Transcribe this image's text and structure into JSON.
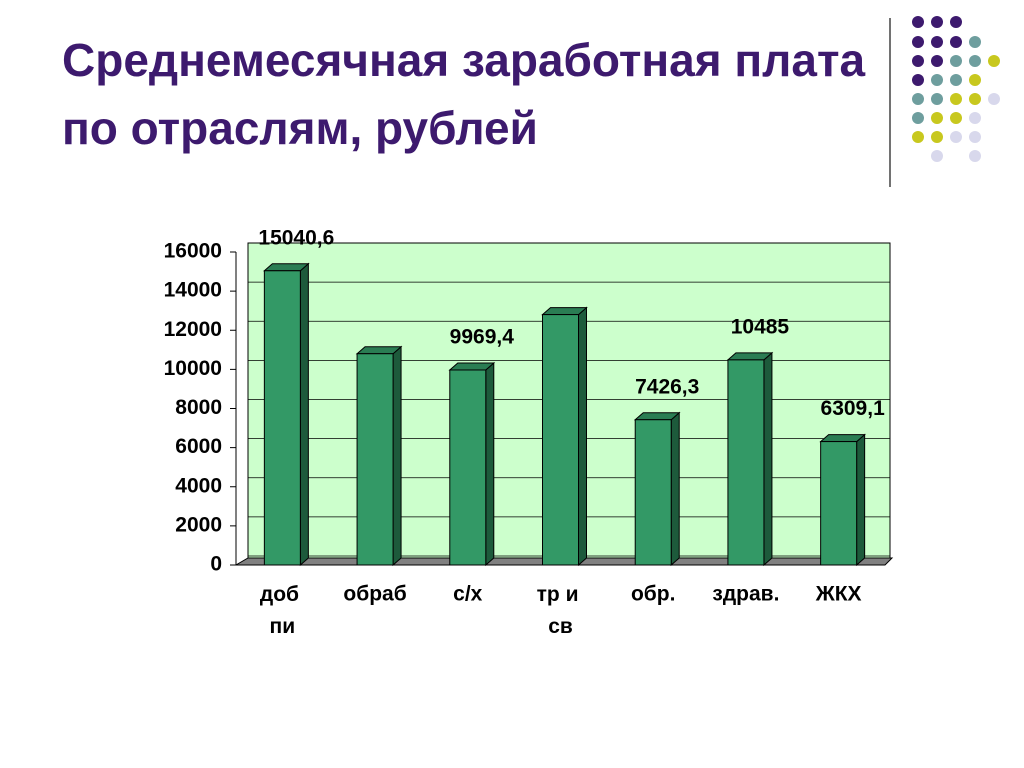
{
  "chart_data": {
    "type": "bar",
    "title": "Среднемесячная заработная плата по отраслям, рублей",
    "categories": [
      "доб пи",
      "обраб",
      "с/х",
      "тр и св",
      "обр.",
      "здрав.",
      "ЖКХ"
    ],
    "values": [
      15040.6,
      10800,
      9969.4,
      12800,
      7426.3,
      10485,
      6309.1
    ],
    "value_labels": [
      "15040,6",
      null,
      "9969,4",
      null,
      "7426,3",
      "10485",
      "6309,1"
    ],
    "color": "#339966",
    "ylim": [
      0,
      16000
    ],
    "yticks": [
      0,
      2000,
      4000,
      6000,
      8000,
      10000,
      12000,
      14000,
      16000
    ],
    "grid": true
  }
}
